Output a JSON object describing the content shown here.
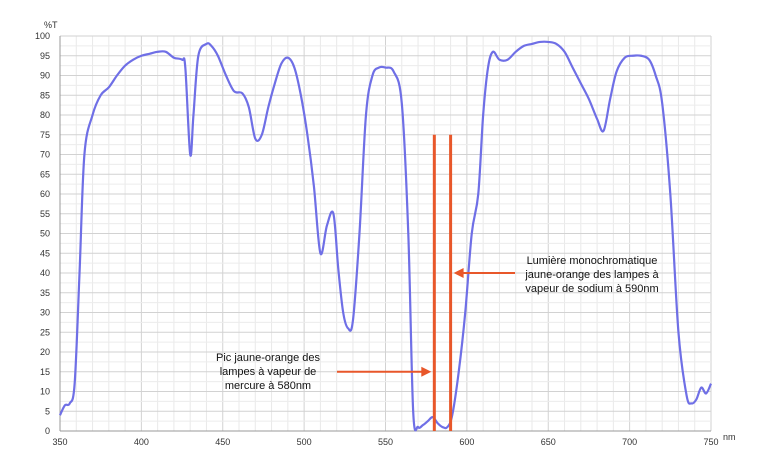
{
  "chart_data": {
    "type": "line",
    "ylabel": "%T",
    "xlabel": "nm",
    "xlim": [
      350,
      750
    ],
    "ylim": [
      0,
      100
    ],
    "x_ticks": [
      350,
      400,
      450,
      500,
      550,
      600,
      650,
      700,
      750
    ],
    "y_ticks": [
      0,
      5,
      10,
      15,
      20,
      25,
      30,
      35,
      40,
      45,
      50,
      55,
      60,
      65,
      70,
      75,
      80,
      85,
      90,
      95,
      100
    ],
    "grid": true,
    "series": [
      {
        "color": "#6f6fe6",
        "x": [
          350,
          353,
          356,
          359,
          362,
          365,
          370,
          375,
          380,
          385,
          390,
          395,
          400,
          405,
          410,
          415,
          420,
          425,
          427,
          430,
          432,
          435,
          440,
          443,
          447,
          452,
          457,
          462,
          466,
          470,
          474,
          478,
          482,
          486,
          490,
          494,
          498,
          502,
          506,
          510,
          514,
          518,
          521,
          524,
          527,
          530,
          534,
          538,
          542,
          546,
          550,
          555,
          560,
          564,
          567,
          570,
          573,
          576,
          579,
          582,
          585,
          588,
          591,
          595,
          599,
          603,
          607,
          610,
          613,
          616,
          620,
          625,
          630,
          635,
          640,
          645,
          650,
          655,
          660,
          665,
          670,
          675,
          680,
          684,
          688,
          692,
          697,
          702,
          707,
          712,
          716,
          720,
          725,
          730,
          735,
          738,
          741,
          744,
          747,
          750
        ],
        "y": [
          4,
          6.5,
          7,
          12,
          40,
          70,
          80,
          85,
          87,
          90,
          92.5,
          94,
          95,
          95.5,
          96,
          96,
          94.5,
          94,
          92,
          70,
          80,
          95,
          98,
          97.5,
          95,
          90,
          86,
          85.5,
          82,
          74,
          75,
          82,
          88,
          93,
          94.5,
          92,
          85,
          75,
          62,
          45,
          52,
          55,
          41,
          30,
          26,
          28,
          50,
          80,
          90,
          92,
          92,
          91,
          83,
          50,
          5,
          1,
          1.5,
          2.5,
          3.5,
          2,
          1,
          1,
          4,
          15,
          30,
          50,
          60,
          80,
          92,
          96,
          94,
          94,
          96,
          97.5,
          98,
          98.5,
          98.5,
          98,
          96,
          92,
          88,
          84,
          79,
          76,
          84,
          91,
          94.5,
          95,
          95,
          94,
          90,
          83,
          60,
          25,
          9,
          7,
          8,
          11,
          9.5,
          12
        ]
      }
    ],
    "markers": [
      {
        "x": 580,
        "color": "#e8572a",
        "y_top": 75
      },
      {
        "x": 590,
        "color": "#e8572a",
        "y_top": 75
      }
    ],
    "annotations": [
      {
        "lines": [
          "Lumière monochromatique",
          "jaune-orange des lampes à",
          "vapeur de sodium à 590nm"
        ],
        "arrow_to_x": 590,
        "arrow_y": 40
      },
      {
        "lines": [
          "Pic jaune-orange des",
          "lampes à vapeur de",
          "mercure à 580nm"
        ],
        "arrow_to_x": 580,
        "arrow_y": 15
      }
    ]
  }
}
